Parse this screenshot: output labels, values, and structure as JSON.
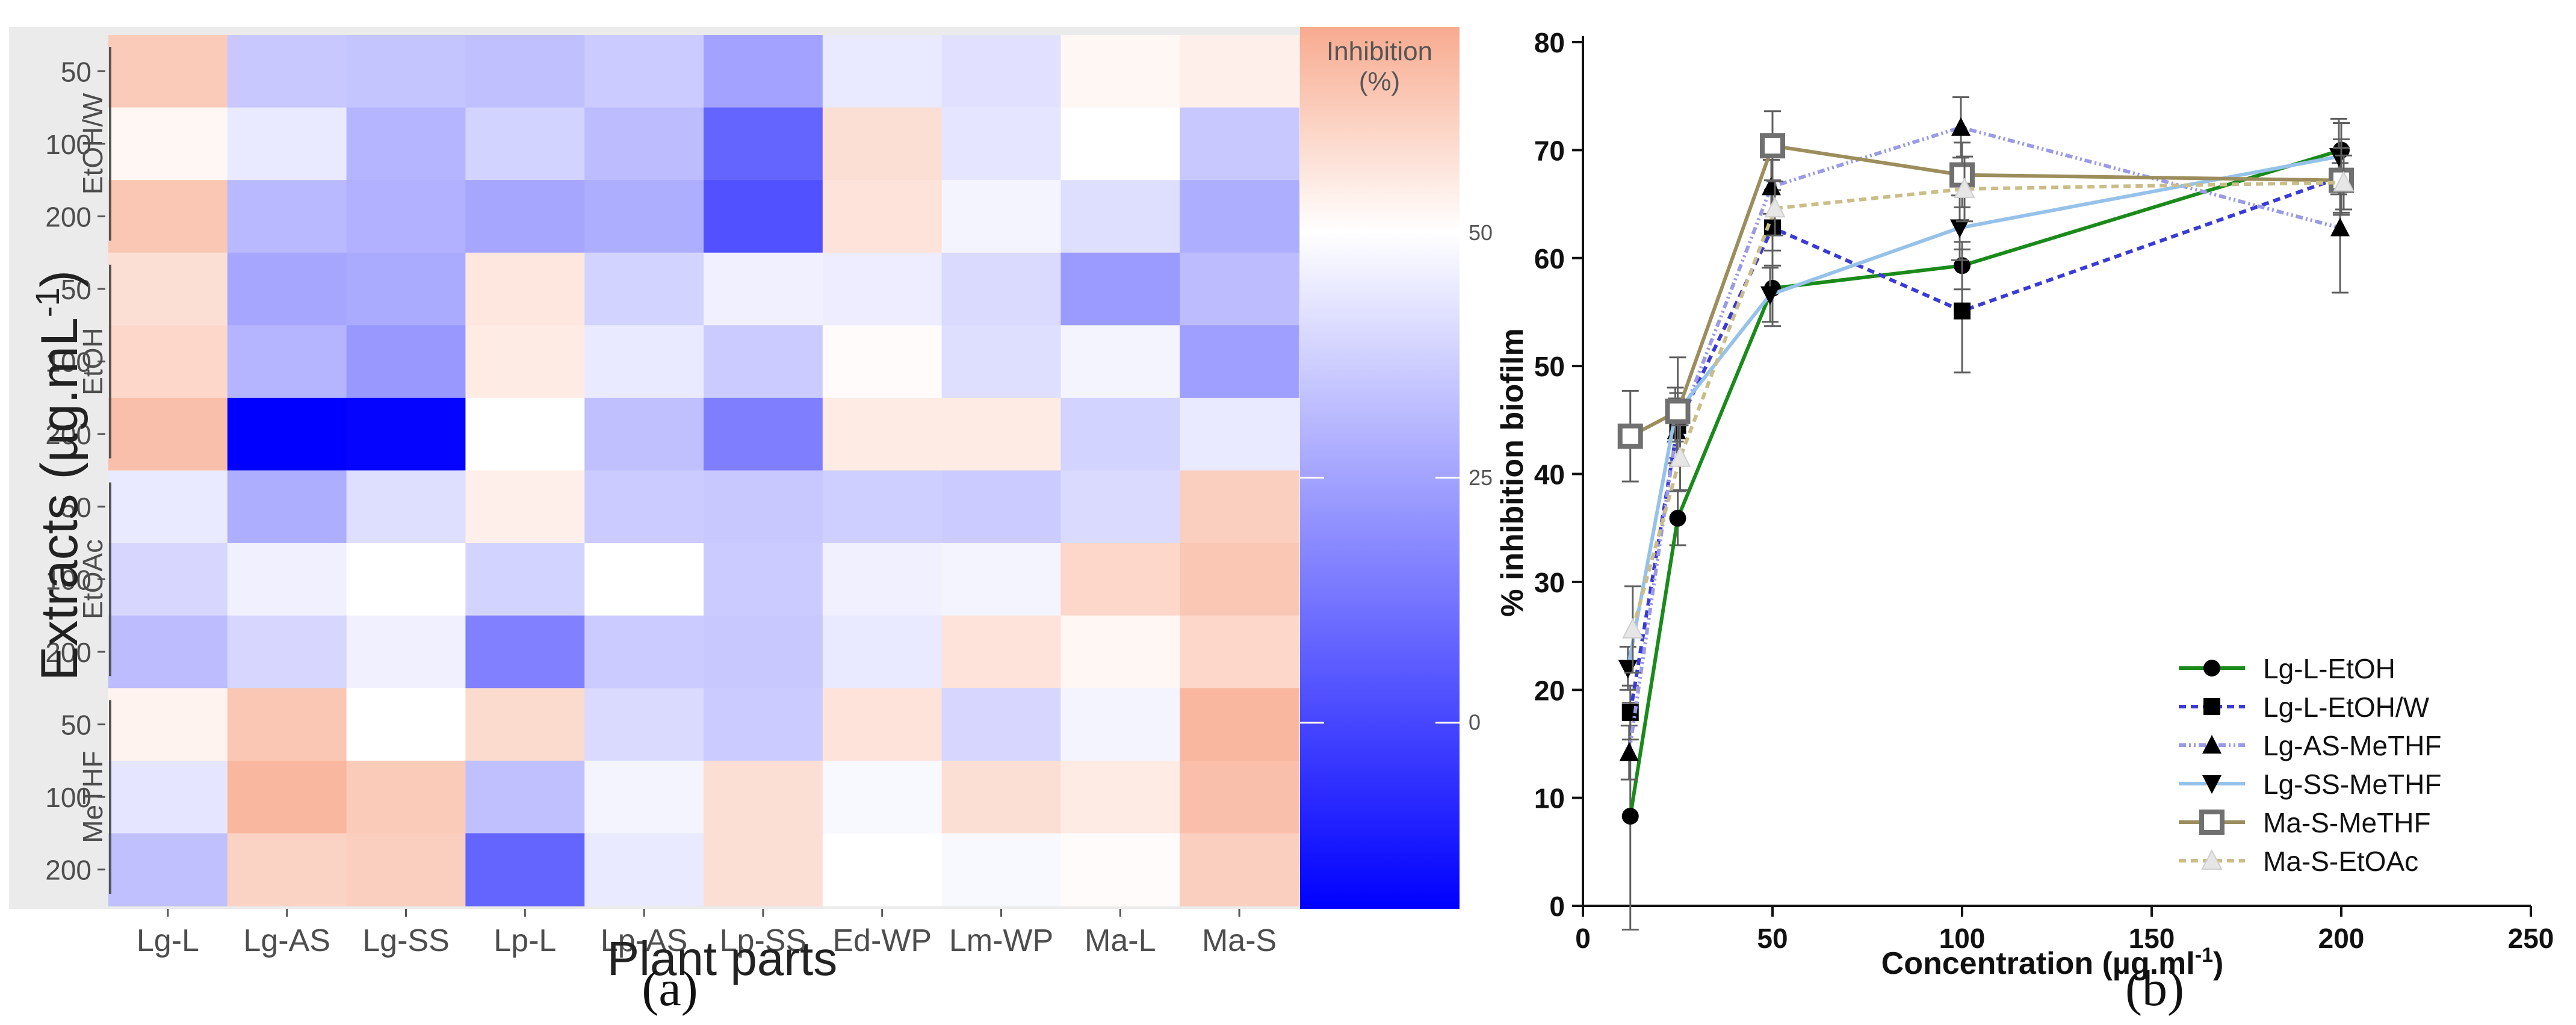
{
  "colors": {
    "low": "#0000ff",
    "mid": "#ffffff",
    "high": "#f8ab8f",
    "panel_bg": "#ebebeb",
    "grid": "#dcdcdc"
  },
  "panel_labels": [
    "(a)",
    "(b)"
  ],
  "chart_data": [
    {
      "type": "heatmap",
      "xlabel": "Plant parts",
      "ylabel": "Extracts (µg.mL",
      "ylabel_sup": "-1",
      "ylabel_close": ")",
      "columns": [
        "Lg-L",
        "Lg-AS",
        "Lg-SS",
        "Lp-L",
        "Lp-AS",
        "Lp-SS",
        "Ed-WP",
        "Lm-WP",
        "Ma-L",
        "Ma-S"
      ],
      "groups": [
        {
          "name": "EtOH/W",
          "rows": [
            "50",
            "100",
            "200"
          ]
        },
        {
          "name": "EtOH",
          "rows": [
            "50",
            "100",
            "200"
          ]
        },
        {
          "name": "EtOAc",
          "rows": [
            "50",
            "100",
            "200"
          ]
        },
        {
          "name": "MeTHF",
          "rows": [
            "50",
            "100",
            "200"
          ]
        }
      ],
      "values": [
        [
          63,
          35,
          34,
          33,
          36,
          25,
          44,
          42,
          52,
          54
        ],
        [
          52,
          44,
          30,
          38,
          32,
          8,
          58,
          43,
          50,
          35
        ],
        [
          64,
          31,
          29,
          26,
          28,
          3,
          57,
          47,
          41,
          28
        ],
        [
          58,
          26,
          27,
          56,
          38,
          46,
          45,
          40,
          23,
          32
        ],
        [
          60,
          30,
          22,
          55,
          44,
          36,
          51,
          41,
          47,
          24
        ],
        [
          66,
          -19,
          -18,
          50,
          33,
          15,
          55,
          55,
          38,
          44
        ],
        [
          44,
          28,
          41,
          54,
          36,
          35,
          37,
          36,
          40,
          62
        ],
        [
          39,
          46,
          50,
          38,
          50,
          36,
          46,
          47,
          60,
          64
        ],
        [
          32,
          39,
          46,
          16,
          36,
          35,
          44,
          57,
          52,
          60
        ],
        [
          53,
          64,
          50,
          59,
          40,
          36,
          57,
          39,
          47,
          68
        ],
        [
          43,
          68,
          63,
          33,
          47,
          58,
          48,
          58,
          55,
          66
        ],
        [
          33,
          61,
          62,
          8,
          44,
          58,
          50,
          48,
          51,
          62
        ]
      ],
      "color_range": [
        -19,
        71
      ],
      "colorbar": {
        "title_line1": "Inhibition",
        "title_line2": "(%)",
        "ticks": [
          0,
          25,
          50
        ],
        "tick_labels": [
          "0",
          "25",
          "50"
        ]
      }
    },
    {
      "type": "line",
      "xlabel": "Concentration (µg.ml",
      "xlabel_sup": "-1",
      "xlabel_close": ")",
      "ylabel": "% inhibition biofilm",
      "xlim": [
        0,
        250
      ],
      "ylim": [
        0,
        80
      ],
      "xticks": [
        0,
        50,
        100,
        150,
        200,
        250
      ],
      "yticks": [
        0,
        10,
        20,
        30,
        40,
        50,
        60,
        70,
        80
      ],
      "x": [
        12.5,
        25,
        50,
        100,
        200
      ],
      "series": [
        {
          "name": "Lg-L-EtOH",
          "values": [
            8.3,
            35.9,
            57.2,
            59.3,
            70.0
          ],
          "err": [
            10.5,
            2.5,
            3.5,
            2.2,
            2.5
          ],
          "color": "#1a8a1a",
          "dash": "",
          "marker": "circle"
        },
        {
          "name": "Lg-L-EtOH/W",
          "values": [
            17.9,
            44.5,
            62.8,
            55.1,
            67.5
          ],
          "err": [
            2.5,
            3.0,
            3.5,
            5.7,
            3.5
          ],
          "color": "#3a3ad6",
          "dash": "12,8",
          "marker": "square"
        },
        {
          "name": "Lg-AS-MeTHF",
          "values": [
            14.2,
            44.0,
            66.6,
            72.1,
            62.8
          ],
          "err": [
            2.5,
            3.0,
            2.5,
            2.8,
            6.0
          ],
          "color": "#9a9ae6",
          "dash": "12,5,3,5,3,5",
          "marker": "triangle"
        },
        {
          "name": "Lg-SS-MeTHF",
          "values": [
            22.0,
            45.5,
            56.6,
            62.8,
            69.4
          ],
          "err": [
            2.0,
            2.5,
            2.5,
            3.0,
            3.5
          ],
          "color": "#96c2ea",
          "dash": "",
          "marker": "triangle-down"
        },
        {
          "name": "Ma-S-MeTHF",
          "values": [
            43.5,
            45.8,
            70.4,
            67.7,
            67.2
          ],
          "err": [
            4.2,
            5.0,
            3.2,
            3.0,
            3.0
          ],
          "color": "#9c8d5c",
          "dash": "",
          "marker": "square-open"
        },
        {
          "name": "Ma-S-EtOAc",
          "values": [
            25.6,
            41.5,
            64.6,
            66.4,
            67.0
          ],
          "err": [
            4.0,
            3.0,
            2.5,
            3.0,
            2.5
          ],
          "color": "#c9bd88",
          "dash": "12,8",
          "marker": "triangle-light"
        }
      ]
    }
  ]
}
